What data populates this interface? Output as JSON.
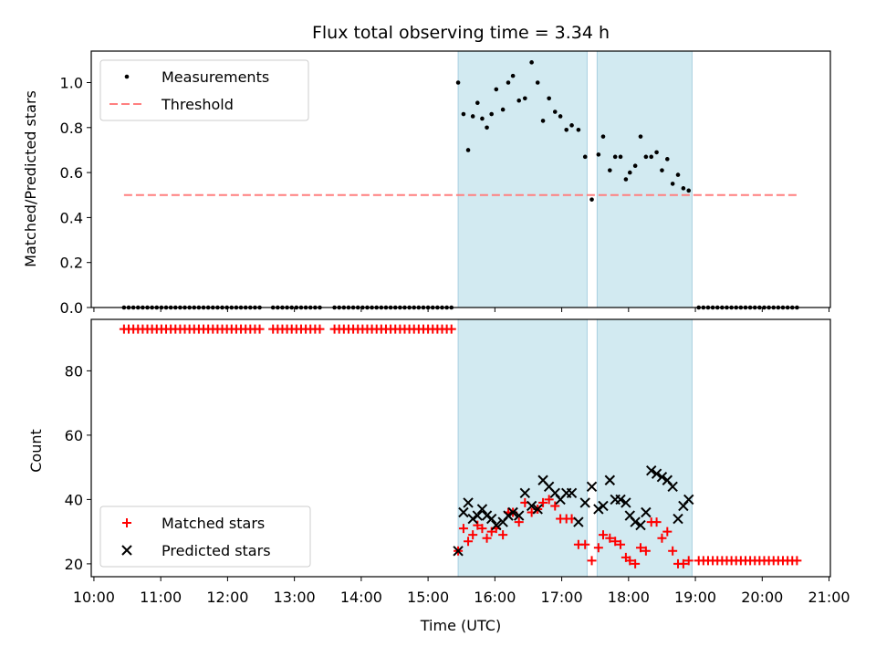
{
  "chart_data": {
    "title": "Flux total observing time = 3.34 h",
    "type": "scatter",
    "x_axis": {
      "label": "Time (UTC)",
      "range_hours": [
        9.96,
        21.02
      ],
      "ticks": [
        {
          "value": 10,
          "label": "10:00"
        },
        {
          "value": 11,
          "label": "11:00"
        },
        {
          "value": 12,
          "label": "12:00"
        },
        {
          "value": 13,
          "label": "13:00"
        },
        {
          "value": 14,
          "label": "14:00"
        },
        {
          "value": 15,
          "label": "15:00"
        },
        {
          "value": 16,
          "label": "16:00"
        },
        {
          "value": 17,
          "label": "17:00"
        },
        {
          "value": 18,
          "label": "18:00"
        },
        {
          "value": 19,
          "label": "19:00"
        },
        {
          "value": 20,
          "label": "20:00"
        },
        {
          "value": 21,
          "label": "21:00"
        }
      ]
    },
    "shaded_intervals": [
      {
        "start": 15.45,
        "end": 17.38
      },
      {
        "start": 17.53,
        "end": 18.95
      }
    ],
    "shade_color": "#add8e6",
    "top_panel": {
      "ylabel": "Matched/Predicted stars",
      "ylim": [
        0,
        1.14
      ],
      "yticks": [
        {
          "value": 0.0,
          "label": "0.0"
        },
        {
          "value": 0.2,
          "label": "0.2"
        },
        {
          "value": 0.4,
          "label": "0.4"
        },
        {
          "value": 0.6,
          "label": "0.6"
        },
        {
          "value": 0.8,
          "label": "0.8"
        },
        {
          "value": 1.0,
          "label": "1.0"
        }
      ],
      "threshold": {
        "value": 0.5,
        "x_start": 10.45,
        "x_end": 20.55,
        "color": "#ff7f7f"
      },
      "legend": [
        {
          "label": "Measurements",
          "kind": "dot",
          "color": "#000000"
        },
        {
          "label": "Threshold",
          "kind": "dash",
          "color": "#ff7f7f"
        }
      ],
      "legend_position": "upper-left",
      "zero_segments": [
        {
          "start": 10.45,
          "end": 12.5,
          "step": 0.07
        },
        {
          "start": 12.68,
          "end": 13.4,
          "step": 0.07
        },
        {
          "start": 13.6,
          "end": 15.4,
          "step": 0.07
        },
        {
          "start": 19.05,
          "end": 20.55,
          "step": 0.07
        }
      ],
      "points": [
        [
          15.45,
          1.0
        ],
        [
          15.53,
          0.86
        ],
        [
          15.6,
          0.7
        ],
        [
          15.67,
          0.85
        ],
        [
          15.74,
          0.91
        ],
        [
          15.81,
          0.84
        ],
        [
          15.88,
          0.8
        ],
        [
          15.95,
          0.86
        ],
        [
          16.02,
          0.97
        ],
        [
          16.12,
          0.88
        ],
        [
          16.2,
          1.0
        ],
        [
          16.27,
          1.03
        ],
        [
          16.36,
          0.92
        ],
        [
          16.45,
          0.93
        ],
        [
          16.55,
          1.09
        ],
        [
          16.64,
          1.0
        ],
        [
          16.72,
          0.83
        ],
        [
          16.81,
          0.93
        ],
        [
          16.9,
          0.87
        ],
        [
          16.98,
          0.85
        ],
        [
          17.07,
          0.79
        ],
        [
          17.15,
          0.81
        ],
        [
          17.25,
          0.79
        ],
        [
          17.35,
          0.67
        ],
        [
          17.45,
          0.48
        ],
        [
          17.55,
          0.68
        ],
        [
          17.62,
          0.76
        ],
        [
          17.72,
          0.61
        ],
        [
          17.8,
          0.67
        ],
        [
          17.88,
          0.67
        ],
        [
          17.96,
          0.57
        ],
        [
          18.02,
          0.6
        ],
        [
          18.1,
          0.63
        ],
        [
          18.18,
          0.76
        ],
        [
          18.26,
          0.67
        ],
        [
          18.34,
          0.67
        ],
        [
          18.42,
          0.69
        ],
        [
          18.5,
          0.61
        ],
        [
          18.58,
          0.66
        ],
        [
          18.66,
          0.55
        ],
        [
          18.74,
          0.59
        ],
        [
          18.82,
          0.53
        ],
        [
          18.9,
          0.52
        ]
      ]
    },
    "bottom_panel": {
      "ylabel": "Count",
      "ylim": [
        16,
        96
      ],
      "yticks": [
        {
          "value": 20,
          "label": "20"
        },
        {
          "value": 40,
          "label": "40"
        },
        {
          "value": 60,
          "label": "60"
        },
        {
          "value": 80,
          "label": "80"
        }
      ],
      "legend": [
        {
          "label": "Matched stars",
          "kind": "plus",
          "color": "#ff0000"
        },
        {
          "label": "Predicted stars",
          "kind": "cross",
          "color": "#000000"
        }
      ],
      "legend_position": "lower-left",
      "matched_constant_segments": [
        {
          "start": 10.45,
          "end": 12.5,
          "step": 0.07,
          "value": 93
        },
        {
          "start": 12.68,
          "end": 13.4,
          "step": 0.07,
          "value": 93
        },
        {
          "start": 13.6,
          "end": 15.4,
          "step": 0.07,
          "value": 93
        },
        {
          "start": 19.05,
          "end": 20.55,
          "step": 0.07,
          "value": 21
        }
      ],
      "matched": [
        [
          15.45,
          24
        ],
        [
          15.53,
          31
        ],
        [
          15.6,
          27
        ],
        [
          15.67,
          29
        ],
        [
          15.74,
          32
        ],
        [
          15.81,
          31
        ],
        [
          15.88,
          28
        ],
        [
          15.95,
          30
        ],
        [
          16.02,
          31
        ],
        [
          16.12,
          29
        ],
        [
          16.2,
          36
        ],
        [
          16.27,
          36
        ],
        [
          16.36,
          33
        ],
        [
          16.45,
          39
        ],
        [
          16.55,
          36
        ],
        [
          16.64,
          37
        ],
        [
          16.72,
          39
        ],
        [
          16.81,
          40
        ],
        [
          16.9,
          38
        ],
        [
          16.98,
          34
        ],
        [
          17.07,
          34
        ],
        [
          17.15,
          34
        ],
        [
          17.25,
          26
        ],
        [
          17.35,
          26
        ],
        [
          17.45,
          21
        ],
        [
          17.55,
          25
        ],
        [
          17.62,
          29
        ],
        [
          17.72,
          28
        ],
        [
          17.8,
          27
        ],
        [
          17.88,
          26
        ],
        [
          17.96,
          22
        ],
        [
          18.02,
          21
        ],
        [
          18.1,
          20
        ],
        [
          18.18,
          25
        ],
        [
          18.26,
          24
        ],
        [
          18.34,
          33
        ],
        [
          18.42,
          33
        ],
        [
          18.5,
          28
        ],
        [
          18.58,
          30
        ],
        [
          18.66,
          24
        ],
        [
          18.74,
          20
        ],
        [
          18.82,
          20
        ],
        [
          18.9,
          21
        ]
      ],
      "predicted": [
        [
          15.45,
          24
        ],
        [
          15.53,
          36
        ],
        [
          15.6,
          39
        ],
        [
          15.67,
          34
        ],
        [
          15.74,
          35
        ],
        [
          15.81,
          37
        ],
        [
          15.88,
          35
        ],
        [
          15.95,
          34
        ],
        [
          16.02,
          32
        ],
        [
          16.12,
          33
        ],
        [
          16.2,
          35
        ],
        [
          16.27,
          36
        ],
        [
          16.36,
          35
        ],
        [
          16.45,
          42
        ],
        [
          16.55,
          38
        ],
        [
          16.64,
          37
        ],
        [
          16.72,
          46
        ],
        [
          16.81,
          44
        ],
        [
          16.9,
          42
        ],
        [
          16.98,
          40
        ],
        [
          17.07,
          42
        ],
        [
          17.15,
          42
        ],
        [
          17.25,
          33
        ],
        [
          17.35,
          39
        ],
        [
          17.45,
          44
        ],
        [
          17.55,
          37
        ],
        [
          17.62,
          38
        ],
        [
          17.72,
          46
        ],
        [
          17.8,
          40
        ],
        [
          17.88,
          40
        ],
        [
          17.96,
          39
        ],
        [
          18.02,
          35
        ],
        [
          18.1,
          33
        ],
        [
          18.18,
          32
        ],
        [
          18.26,
          36
        ],
        [
          18.34,
          49
        ],
        [
          18.42,
          48
        ],
        [
          18.5,
          47
        ],
        [
          18.58,
          46
        ],
        [
          18.66,
          44
        ],
        [
          18.74,
          34
        ],
        [
          18.82,
          38
        ],
        [
          18.9,
          40
        ]
      ]
    }
  }
}
